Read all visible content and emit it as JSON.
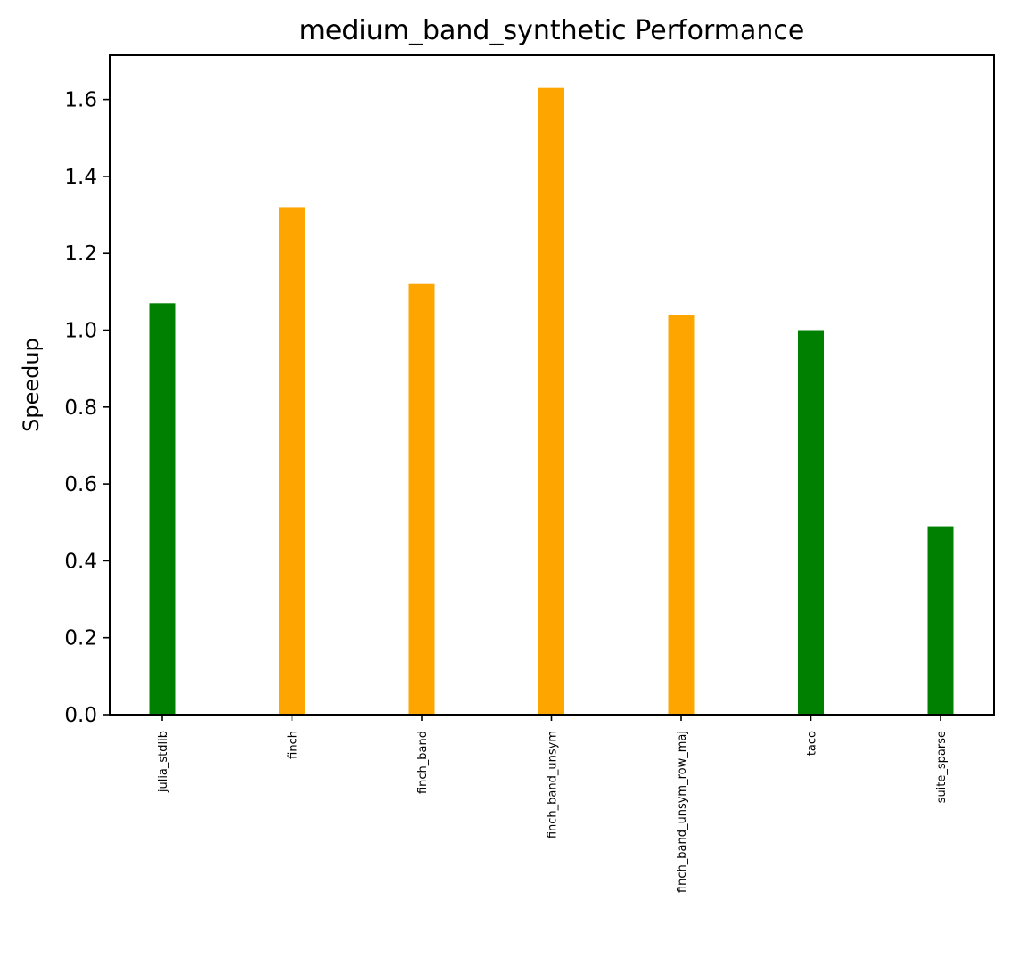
{
  "chart_data": {
    "type": "bar",
    "title": "medium_band_synthetic Performance",
    "xlabel": "",
    "ylabel": "Speedup",
    "categories": [
      "julia_stdlib",
      "finch",
      "finch_band",
      "finch_band_unsym",
      "finch_band_unsym_row_maj",
      "taco",
      "suite_sparse"
    ],
    "values": [
      1.07,
      1.32,
      1.12,
      1.63,
      1.04,
      1.0,
      0.49
    ],
    "bar_colors": [
      "#008000",
      "#ffa500",
      "#ffa500",
      "#ffa500",
      "#ffa500",
      "#008000",
      "#008000"
    ],
    "ylim": [
      0,
      1.715
    ],
    "yticks": [
      "0.0",
      "0.2",
      "0.4",
      "0.6",
      "0.8",
      "1.0",
      "1.2",
      "1.4",
      "1.6"
    ],
    "grid": false,
    "legend": "none"
  }
}
